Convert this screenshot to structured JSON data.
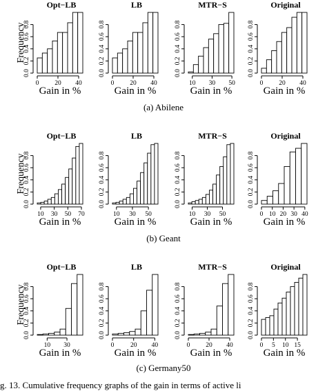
{
  "figure_caption": "g. 13.    Cumulative frequency graphs of the gain in terms of active li",
  "chart_data": [
    {
      "caption": "(a) Abilene",
      "ylabel": "Frequency",
      "panels": [
        {
          "type": "bar",
          "title": "Opt−LB",
          "xlabel": "Gain in %",
          "xlim": [
            0,
            44
          ],
          "ylim": [
            0,
            1.0
          ],
          "xticks": [
            "0",
            "20",
            "40"
          ],
          "xtick_values": [
            0,
            20,
            40
          ],
          "yticks": [
            "0.0",
            "0.2",
            "0.4",
            "0.6",
            "0.8"
          ],
          "values": [
            0.25,
            0.33,
            0.4,
            0.53,
            0.67,
            0.67,
            0.83,
            1.0,
            1.0
          ]
        },
        {
          "type": "bar",
          "title": "LB",
          "xlabel": "Gain in %",
          "xlim": [
            0,
            44
          ],
          "ylim": [
            0,
            1.0
          ],
          "xticks": [
            "0",
            "20",
            "40"
          ],
          "xtick_values": [
            0,
            20,
            40
          ],
          "yticks": [
            "0.0",
            "0.2",
            "0.4",
            "0.6",
            "0.8"
          ],
          "values": [
            0.25,
            0.33,
            0.4,
            0.53,
            0.67,
            0.67,
            0.83,
            1.0,
            1.0
          ]
        },
        {
          "type": "bar",
          "title": "MTR−S",
          "xlabel": "Gain in %",
          "xlim": [
            6,
            52
          ],
          "ylim": [
            0,
            1.0
          ],
          "xticks": [
            "10",
            "30",
            "50"
          ],
          "xtick_values": [
            10,
            30,
            50
          ],
          "yticks": [
            "0.0",
            "0.2",
            "0.4",
            "0.6",
            "0.8"
          ],
          "values": [
            0.02,
            0.14,
            0.28,
            0.42,
            0.56,
            0.65,
            0.8,
            0.82,
            1.0
          ]
        },
        {
          "type": "bar",
          "title": "Original",
          "xlabel": "Gain in %",
          "xlim": [
            0,
            44
          ],
          "ylim": [
            0,
            1.0
          ],
          "xticks": [
            "0",
            "20",
            "40"
          ],
          "xtick_values": [
            0,
            20,
            40
          ],
          "yticks": [
            "0.0",
            "0.2",
            "0.4",
            "0.6",
            "0.8"
          ],
          "values": [
            0.08,
            0.22,
            0.37,
            0.52,
            0.67,
            0.75,
            0.92,
            1.0,
            1.0
          ]
        }
      ]
    },
    {
      "caption": "(b) Geant",
      "ylabel": "Frequency",
      "panels": [
        {
          "type": "bar",
          "title": "Opt−LB",
          "xlabel": "Gain in %",
          "xlim": [
            5,
            72
          ],
          "ylim": [
            0,
            1.0
          ],
          "xticks": [
            "10",
            "30",
            "50",
            "70"
          ],
          "xtick_values": [
            10,
            30,
            50,
            70
          ],
          "yticks": [
            "0.0",
            "0.2",
            "0.4",
            "0.6",
            "0.8"
          ],
          "values": [
            0.02,
            0.03,
            0.05,
            0.08,
            0.11,
            0.17,
            0.24,
            0.33,
            0.44,
            0.58,
            0.76,
            0.95,
            1.0
          ]
        },
        {
          "type": "bar",
          "title": "LB",
          "xlabel": "Gain in %",
          "xlim": [
            5,
            62
          ],
          "ylim": [
            0,
            1.0
          ],
          "xticks": [
            "10",
            "30",
            "50"
          ],
          "xtick_values": [
            10,
            30,
            50
          ],
          "yticks": [
            "0.0",
            "0.2",
            "0.4",
            "0.6",
            "0.8"
          ],
          "values": [
            0.02,
            0.03,
            0.05,
            0.08,
            0.11,
            0.17,
            0.26,
            0.38,
            0.52,
            0.68,
            0.84,
            0.98,
            1.0
          ]
        },
        {
          "type": "bar",
          "title": "MTR−S",
          "xlabel": "Gain in %",
          "xlim": [
            5,
            65
          ],
          "ylim": [
            0,
            1.0
          ],
          "xticks": [
            "10",
            "30",
            "50"
          ],
          "xtick_values": [
            10,
            30,
            50
          ],
          "yticks": [
            "0.0",
            "0.2",
            "0.4",
            "0.6",
            "0.8"
          ],
          "values": [
            0.02,
            0.04,
            0.06,
            0.08,
            0.11,
            0.16,
            0.23,
            0.33,
            0.48,
            0.62,
            0.78,
            0.98,
            1.0
          ]
        },
        {
          "type": "bar",
          "title": "Original",
          "xlabel": "Gain in %",
          "xlim": [
            0,
            42
          ],
          "ylim": [
            0,
            1.0
          ],
          "xticks": [
            "0",
            "10",
            "20",
            "30",
            "40"
          ],
          "xtick_values": [
            0,
            10,
            20,
            30,
            40
          ],
          "yticks": [
            "0.0",
            "0.2",
            "0.4",
            "0.6",
            "0.8"
          ],
          "values": [
            0.06,
            0.13,
            0.22,
            0.34,
            0.62,
            0.86,
            0.92,
            1.0
          ]
        }
      ]
    },
    {
      "caption": "(c) Germany50",
      "ylabel": "Frequency",
      "panels": [
        {
          "type": "bar",
          "title": "Opt−LB",
          "xlabel": "Gain in %",
          "xlim": [
            0,
            46
          ],
          "ylim": [
            0,
            1.0
          ],
          "xticks": [
            "10",
            "30"
          ],
          "xtick_values": [
            10,
            30
          ],
          "yticks": [
            "0.0",
            "0.2",
            "0.4",
            "0.6",
            "0.8"
          ],
          "values": [
            0.01,
            0.02,
            0.03,
            0.05,
            0.1,
            0.44,
            0.85,
            1.0
          ]
        },
        {
          "type": "bar",
          "title": "LB",
          "xlabel": "Gain in %",
          "xlim": [
            0,
            43
          ],
          "ylim": [
            0,
            1.0
          ],
          "xticks": [
            "0",
            "20",
            "40"
          ],
          "xtick_values": [
            0,
            20,
            40
          ],
          "yticks": [
            "0.0",
            "0.2",
            "0.4",
            "0.6",
            "0.8"
          ],
          "values": [
            0.02,
            0.03,
            0.04,
            0.06,
            0.1,
            0.4,
            0.74,
            1.0
          ]
        },
        {
          "type": "bar",
          "title": "MTR−S",
          "xlabel": "Gain in %",
          "xlim": [
            0,
            44
          ],
          "ylim": [
            0,
            1.0
          ],
          "xticks": [
            "0",
            "20",
            "40"
          ],
          "xtick_values": [
            0,
            20,
            40
          ],
          "yticks": [
            "0.0",
            "0.2",
            "0.4",
            "0.6",
            "0.8"
          ],
          "values": [
            0.01,
            0.02,
            0.03,
            0.05,
            0.1,
            0.48,
            0.85,
            1.0
          ]
        },
        {
          "type": "bar",
          "title": "Original",
          "xlabel": "Gain in %",
          "xlim": [
            0,
            19
          ],
          "ylim": [
            0,
            1.0
          ],
          "xticks": [
            "0",
            "5",
            "10",
            "15"
          ],
          "xtick_values": [
            0,
            5,
            10,
            15
          ],
          "yticks": [
            "0.0",
            "0.2",
            "0.4",
            "0.6",
            "0.8"
          ],
          "values": [
            0.26,
            0.29,
            0.32,
            0.43,
            0.53,
            0.61,
            0.71,
            0.8,
            0.87,
            0.94,
            1.0
          ]
        }
      ]
    }
  ]
}
